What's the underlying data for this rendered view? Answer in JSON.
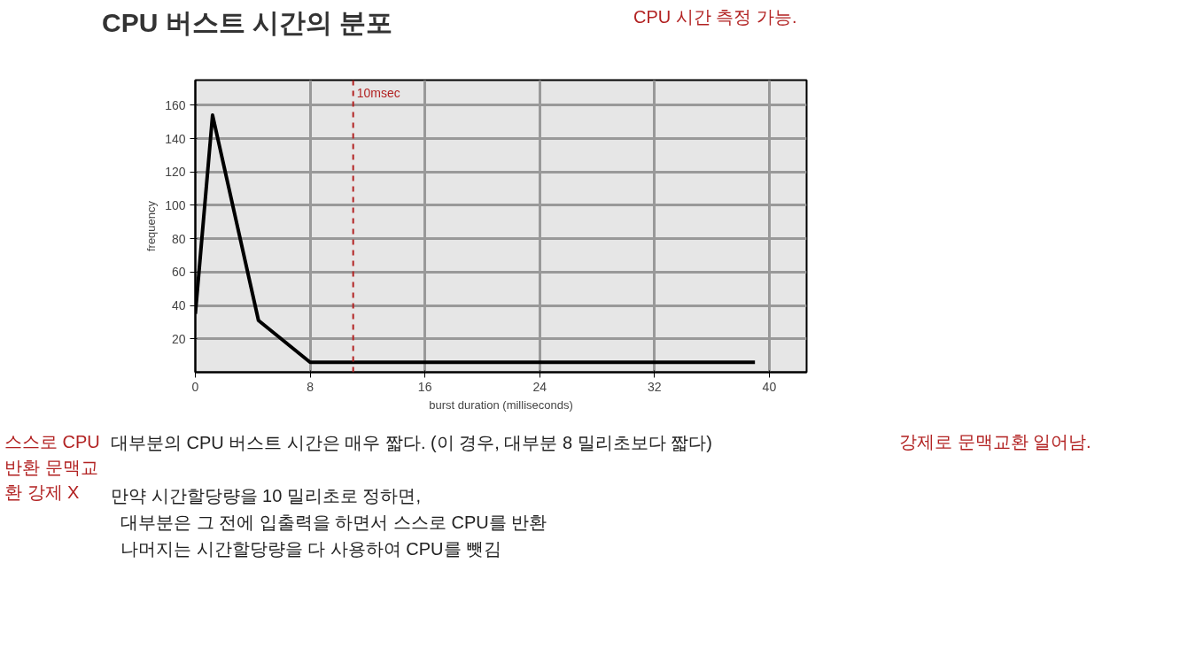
{
  "chart_data": {
    "type": "line",
    "title": "CPU 버스트 시간의 분포",
    "xlabel": "burst duration (milliseconds)",
    "ylabel": "frequency",
    "x": [
      0,
      1.2,
      4.4,
      8,
      39
    ],
    "series": [
      {
        "color": "#000000",
        "values": [
          35,
          154,
          31,
          6,
          6
        ]
      }
    ],
    "xlim": [
      0,
      42.6
    ],
    "ylim": [
      0,
      175
    ],
    "xticks": [
      0,
      8,
      16,
      24,
      32,
      40
    ],
    "yticks": [
      20,
      40,
      60,
      80,
      100,
      120,
      140,
      160
    ],
    "grid": true,
    "marker": "none",
    "line_style": "solid",
    "ref_lines": [
      {
        "axis": "x",
        "value": 11,
        "label": "10msec",
        "color": "#b22222",
        "line_style": "dashed"
      }
    ],
    "annotations": [
      "대부분의 CPU 버스트 시간은 매우 짧다. (이 경우, 대부분 8 밀리초보다 짧다)",
      "만약 시간할당량을 10 밀리초로 정하면,",
      "대부분은 그 전에 입출력을 하면서 스스로 CPU를 반환",
      "나머지는 시간할당량을 다 사용하여 CPU를 뺏김",
      "CPU 시간 측정 가능.",
      "스스로 CPU 반환 문맥교환 강제 X",
      "강제로 문맥교환 일어남."
    ]
  }
}
